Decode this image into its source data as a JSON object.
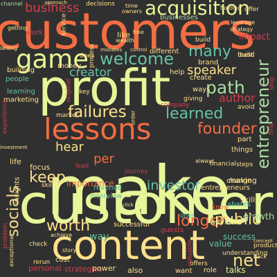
{
  "cloud": {
    "background": "#303030",
    "palette": {
      "red": "#d53e4f",
      "orange": "#f46d43",
      "amber": "#fdae61",
      "sand": "#fee08b",
      "lime": "#e6f598",
      "green": "#abdda4",
      "teal": "#66c2a5",
      "darkred": "#9e0142"
    },
    "words": [
      {
        "text": "make",
        "color": "lime",
        "rot": 0
      },
      {
        "text": "customers",
        "color": "orange",
        "rot": 0
      },
      {
        "text": "customer",
        "color": "lime",
        "rot": 0
      },
      {
        "text": "profit",
        "color": "lime",
        "rot": 0
      },
      {
        "text": "content",
        "color": "sand",
        "rot": 0
      },
      {
        "text": "lessons",
        "color": "orange",
        "rot": 0
      },
      {
        "text": "game",
        "color": "lime",
        "rot": 0
      },
      {
        "text": "acquisition",
        "color": "lime",
        "rot": 0
      },
      {
        "text": "failures",
        "color": "sand",
        "rot": 0
      },
      {
        "text": "welcome",
        "color": "teal",
        "rot": 0
      },
      {
        "text": "learned",
        "color": "teal",
        "rot": 0
      },
      {
        "text": "socials",
        "color": "sand",
        "rot": -90
      },
      {
        "text": "entrepreneur",
        "color": "green",
        "rot": -90
      },
      {
        "text": "founder",
        "color": "orange",
        "rot": 0
      },
      {
        "text": "path",
        "color": "green",
        "rot": 0
      },
      {
        "text": "many",
        "color": "teal",
        "rot": 0
      },
      {
        "text": "keep",
        "color": "sand",
        "rot": 0
      },
      {
        "text": "longer",
        "color": "orange",
        "rot": 0
      },
      {
        "text": "worth",
        "color": "sand",
        "rot": 0
      },
      {
        "text": "public",
        "color": "sand",
        "rot": 0
      },
      {
        "text": "net",
        "color": "sand",
        "rot": 0
      },
      {
        "text": "business",
        "color": "red",
        "rot": 0
      },
      {
        "text": "investor",
        "color": "teal",
        "rot": 0
      },
      {
        "text": "speaker",
        "color": "sand",
        "rot": 0
      },
      {
        "text": "hear",
        "color": "sand",
        "rot": 0
      },
      {
        "text": "per",
        "color": "orange",
        "rot": 0
      },
      {
        "text": "creator",
        "color": "teal",
        "rot": 0
      },
      {
        "text": "author",
        "color": "red",
        "rot": 0
      },
      {
        "text": "importance",
        "color": "orange",
        "rot": 0
      },
      {
        "text": "way",
        "color": "teal",
        "rot": 0
      },
      {
        "text": "growth",
        "color": "green",
        "rot": 0
      },
      {
        "text": "success",
        "color": "teal",
        "rot": 0
      },
      {
        "text": "value",
        "color": "teal",
        "rot": 0
      },
      {
        "text": "talks",
        "color": "lime",
        "rot": 0
      },
      {
        "text": "advice",
        "color": "lime",
        "rot": 0
      },
      {
        "text": "making",
        "color": "sand",
        "rot": 0
      },
      {
        "text": "skills",
        "color": "sand",
        "rot": 0
      },
      {
        "text": "revenue",
        "color": "teal",
        "rot": 0
      },
      {
        "text": "interview",
        "color": "teal",
        "rot": 0
      },
      {
        "text": "successful",
        "color": "sand",
        "rot": 0
      },
      {
        "text": "insights",
        "color": "sand",
        "rot": -90
      },
      {
        "text": "life",
        "color": "sand",
        "rot": 0
      },
      {
        "text": "focus",
        "color": "sand",
        "rot": 0
      },
      {
        "text": "money",
        "color": "sand",
        "rot": 0
      },
      {
        "text": "building",
        "color": "sand",
        "rot": 0
      },
      {
        "text": "marketing",
        "color": "sand",
        "rot": 0
      },
      {
        "text": "learning",
        "color": "teal",
        "rot": 0
      },
      {
        "text": "people",
        "color": "teal",
        "rot": 0
      },
      {
        "text": "help",
        "color": "sand",
        "rot": 0
      },
      {
        "text": "company",
        "color": "red",
        "rot": 0
      },
      {
        "text": "part",
        "color": "sand",
        "rot": 0
      },
      {
        "text": "things",
        "color": "sand",
        "rot": 0
      },
      {
        "text": "steps",
        "color": "sand",
        "rot": 0
      },
      {
        "text": "change",
        "color": "sand",
        "rot": 0
      },
      {
        "text": "entrepreneurs",
        "color": "sand",
        "rot": 0
      },
      {
        "text": "shares",
        "color": "teal",
        "rot": 0
      },
      {
        "text": "ways",
        "color": "sand",
        "rot": 0
      },
      {
        "text": "giving",
        "color": "sand",
        "rot": 0
      },
      {
        "text": "create",
        "color": "sand",
        "rot": 0
      },
      {
        "text": "avoid",
        "color": "sand",
        "rot": 0
      },
      {
        "text": "different",
        "color": "sand",
        "rot": 0
      },
      {
        "text": "brand",
        "color": "sand",
        "rot": 0
      },
      {
        "text": "build",
        "color": "sand",
        "rot": 0
      },
      {
        "text": "guests",
        "color": "red",
        "rot": 0
      },
      {
        "text": "personal",
        "color": "red",
        "rot": 0
      },
      {
        "text": "strategies",
        "color": "red",
        "rot": 0
      },
      {
        "text": "power",
        "color": "sand",
        "rot": 0
      },
      {
        "text": "cost",
        "color": "sand",
        "rot": 0
      },
      {
        "text": "rerun",
        "color": "sand",
        "rot": 0
      },
      {
        "text": "check",
        "color": "sand",
        "rot": 0
      },
      {
        "text": "offers",
        "color": "sand",
        "rot": 0
      },
      {
        "text": "role",
        "color": "sand",
        "rot": 0
      },
      {
        "text": "want",
        "color": "sand",
        "rot": 0
      },
      {
        "text": "back",
        "color": "sand",
        "rot": 0
      },
      {
        "text": "know",
        "color": "orange",
        "rot": 0
      },
      {
        "text": "ones",
        "color": "teal",
        "rot": 0
      },
      {
        "text": "story",
        "color": "sand",
        "rot": 0
      },
      {
        "text": "also",
        "color": "sand",
        "rot": 0
      },
      {
        "text": "valuable",
        "color": "red",
        "rot": -90
      },
      {
        "text": "understanding",
        "color": "sand",
        "rot": 0
      },
      {
        "text": "original",
        "color": "red",
        "rot": -90
      },
      {
        "text": "process",
        "color": "sand",
        "rot": -90
      },
      {
        "text": "service",
        "color": "sand",
        "rot": -90
      },
      {
        "text": "lead",
        "color": "red",
        "rot": 0
      },
      {
        "text": "first",
        "color": "red",
        "rot": -90
      },
      {
        "text": "financial",
        "color": "sand",
        "rot": 0
      },
      {
        "text": "journey",
        "color": "red",
        "rot": 0
      },
      {
        "text": "always",
        "color": "sand",
        "rot": 0
      },
      {
        "text": "experience",
        "color": "red",
        "rot": -90
      },
      {
        "text": "channel",
        "color": "green",
        "rot": 0
      },
      {
        "text": "approach",
        "color": "sand",
        "rot": 0
      },
      {
        "text": "decisions",
        "color": "sand",
        "rot": 0
      },
      {
        "text": "time",
        "color": "sand",
        "rot": 0
      },
      {
        "text": "owners",
        "color": "sand",
        "rot": 0
      },
      {
        "text": "funding",
        "color": "sand",
        "rot": 0
      },
      {
        "text": "offer",
        "color": "sand",
        "rot": 0
      },
      {
        "text": "work",
        "color": "red",
        "rot": 0
      },
      {
        "text": "getting",
        "color": "sand",
        "rot": 0
      },
      {
        "text": "businesses",
        "color": "green",
        "rot": 0
      },
      {
        "text": "leverage",
        "color": "sand",
        "rot": 0
      },
      {
        "text": "strategy",
        "color": "sand",
        "rot": 0
      },
      {
        "text": "impact",
        "color": "red",
        "rot": 0
      },
      {
        "text": "like",
        "color": "sand",
        "rot": 0
      },
      {
        "text": "free",
        "color": "sand",
        "rot": 0
      },
      {
        "text": "wealth",
        "color": "sand",
        "rot": 0
      },
      {
        "text": "build",
        "color": "sand",
        "rot": 0
      },
      {
        "text": "best",
        "color": "sand",
        "rot": 0
      },
      {
        "text": "selling",
        "color": "sand",
        "rot": 0
      },
      {
        "text": "control",
        "color": "sand",
        "rot": 0
      },
      {
        "text": "mistakes",
        "color": "sand",
        "rot": 0
      },
      {
        "text": "does",
        "color": "sand",
        "rot": 0
      },
      {
        "text": "key",
        "color": "sand",
        "rot": 0
      },
      {
        "text": "order",
        "color": "sand",
        "rot": -90
      },
      {
        "text": "market",
        "color": "sand",
        "rot": 0
      },
      {
        "text": "skill",
        "color": "sand",
        "rot": 0
      },
      {
        "text": "problem",
        "color": "red",
        "rot": -90
      },
      {
        "text": "exceptional",
        "color": "sand",
        "rot": -90
      },
      {
        "text": "achieve",
        "color": "sand",
        "rot": 0
      },
      {
        "text": "click",
        "color": "sand",
        "rot": 0
      },
      {
        "text": "products",
        "color": "sand",
        "rot": 0
      },
      {
        "text": "concept",
        "color": "sand",
        "rot": 0
      },
      {
        "text": "ship",
        "color": "red",
        "rot": -90
      },
      {
        "text": "investment",
        "color": "sand",
        "rot": 0
      }
    ]
  }
}
